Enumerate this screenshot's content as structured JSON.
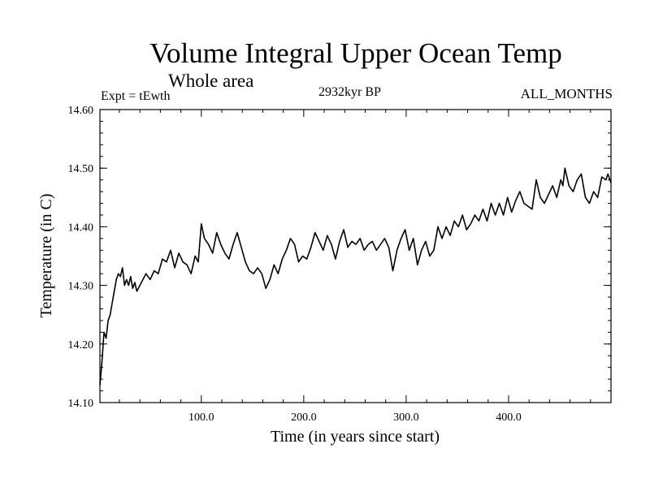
{
  "header": {
    "title": "Volume Integral Upper Ocean Temp",
    "subtitle": "Whole area",
    "experiment": "Expt = tEwth",
    "period": "2932kyr BP",
    "months": "ALL_MONTHS"
  },
  "chart_data": {
    "type": "line",
    "title": "Volume Integral Upper Ocean Temp",
    "subtitle": "Whole area",
    "xlabel": "Time (in years since start)",
    "ylabel": "Temperature (in C)",
    "xlim": [
      1,
      500
    ],
    "ylim": [
      14.1,
      14.6
    ],
    "x_ticks": [
      100,
      200,
      300,
      400
    ],
    "x_tick_labels": [
      "100.0",
      "200.0",
      "300.0",
      "400.0"
    ],
    "y_ticks": [
      14.1,
      14.2,
      14.3,
      14.4,
      14.5,
      14.6
    ],
    "y_tick_labels": [
      "14.10",
      "14.20",
      "14.30",
      "14.40",
      "14.50",
      "14.60"
    ],
    "grid": false,
    "series": [
      {
        "name": "Volume integral upper ocean temperature",
        "x": [
          1,
          3,
          5,
          7,
          9,
          11,
          13,
          15,
          17,
          19,
          21,
          23,
          25,
          27,
          29,
          31,
          33,
          35,
          37,
          40,
          43,
          46,
          50,
          54,
          58,
          62,
          66,
          70,
          74,
          78,
          82,
          86,
          90,
          94,
          97,
          100,
          103,
          107,
          111,
          115,
          119,
          123,
          127,
          131,
          135,
          139,
          143,
          147,
          151,
          155,
          159,
          163,
          167,
          171,
          175,
          179,
          183,
          187,
          191,
          195,
          199,
          203,
          207,
          211,
          215,
          219,
          223,
          227,
          231,
          235,
          239,
          243,
          247,
          251,
          255,
          259,
          263,
          267,
          271,
          275,
          279,
          283,
          287,
          291,
          295,
          299,
          303,
          307,
          311,
          315,
          319,
          323,
          327,
          331,
          335,
          339,
          343,
          347,
          351,
          355,
          359,
          363,
          367,
          371,
          375,
          379,
          383,
          387,
          391,
          395,
          399,
          403,
          407,
          411,
          415,
          419,
          423,
          427,
          431,
          435,
          439,
          443,
          447,
          451,
          453,
          455,
          459,
          463,
          467,
          471,
          475,
          479,
          483,
          487,
          491,
          495,
          497,
          500
        ],
        "y": [
          14.13,
          14.17,
          14.22,
          14.21,
          14.24,
          14.25,
          14.27,
          14.29,
          14.31,
          14.32,
          14.315,
          14.33,
          14.3,
          14.31,
          14.3,
          14.315,
          14.295,
          14.305,
          14.29,
          14.3,
          14.31,
          14.32,
          14.31,
          14.325,
          14.32,
          14.345,
          14.34,
          14.36,
          14.33,
          14.355,
          14.34,
          14.335,
          14.32,
          14.35,
          14.34,
          14.405,
          14.38,
          14.37,
          14.355,
          14.39,
          14.37,
          14.355,
          14.345,
          14.37,
          14.39,
          14.365,
          14.34,
          14.325,
          14.32,
          14.33,
          14.32,
          14.295,
          14.31,
          14.335,
          14.32,
          14.345,
          14.36,
          14.38,
          14.37,
          14.34,
          14.35,
          14.345,
          14.365,
          14.39,
          14.375,
          14.36,
          14.385,
          14.37,
          14.345,
          14.375,
          14.395,
          14.365,
          14.375,
          14.37,
          14.38,
          14.36,
          14.37,
          14.375,
          14.36,
          14.37,
          14.38,
          14.365,
          14.325,
          14.36,
          14.38,
          14.395,
          14.36,
          14.38,
          14.335,
          14.36,
          14.375,
          14.35,
          14.36,
          14.4,
          14.38,
          14.4,
          14.385,
          14.41,
          14.4,
          14.42,
          14.395,
          14.405,
          14.42,
          14.41,
          14.43,
          14.41,
          14.44,
          14.42,
          14.44,
          14.42,
          14.45,
          14.425,
          14.445,
          14.46,
          14.44,
          14.435,
          14.43,
          14.48,
          14.45,
          14.44,
          14.455,
          14.47,
          14.45,
          14.48,
          14.47,
          14.5,
          14.47,
          14.46,
          14.48,
          14.49,
          14.45,
          14.44,
          14.46,
          14.45,
          14.485,
          14.48,
          14.49,
          14.475
        ]
      }
    ]
  }
}
